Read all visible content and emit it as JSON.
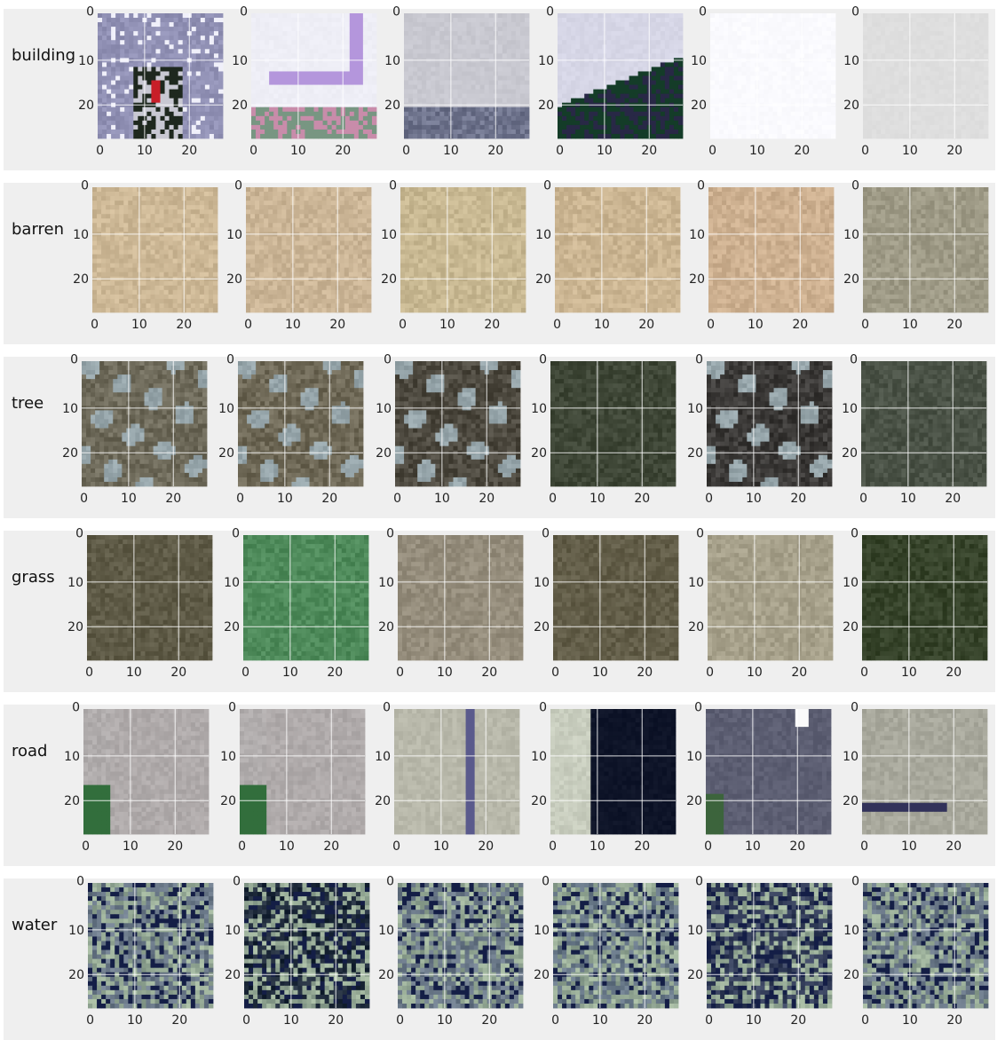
{
  "chart_data": {
    "type": "image-grid",
    "title": "",
    "image_size": [
      28,
      28
    ],
    "xticks": [
      0,
      10,
      20
    ],
    "yticks": [
      0,
      10,
      20
    ],
    "grid": true,
    "rows": [
      {
        "label": "building",
        "tiles": [
          {
            "base": "#9090b4",
            "pattern": "building-dark"
          },
          {
            "base": "#eeeef6",
            "pattern": "building-corner"
          },
          {
            "base": "#c8c8d0",
            "pattern": "building-bottom"
          },
          {
            "base": "#d6d6e6",
            "pattern": "building-trees"
          },
          {
            "base": "#fafafe",
            "pattern": "plain"
          },
          {
            "base": "#dedede",
            "pattern": "plain"
          }
        ]
      },
      {
        "label": "barren",
        "tiles": [
          {
            "base": "#cdb896",
            "pattern": "noise"
          },
          {
            "base": "#cbb596",
            "pattern": "noise"
          },
          {
            "base": "#c8b892",
            "pattern": "noise"
          },
          {
            "base": "#cbb592",
            "pattern": "noise"
          },
          {
            "base": "#cdb090",
            "pattern": "noise"
          },
          {
            "base": "#9e9a86",
            "pattern": "noise"
          }
        ]
      },
      {
        "label": "tree",
        "tiles": [
          {
            "base": "#6e6a5a",
            "pattern": "tree"
          },
          {
            "base": "#6e6856",
            "pattern": "tree"
          },
          {
            "base": "#4e4a40",
            "pattern": "tree"
          },
          {
            "base": "#3e4636",
            "pattern": "noise"
          },
          {
            "base": "#3c3a38",
            "pattern": "tree"
          },
          {
            "base": "#4a5246",
            "pattern": "noise"
          }
        ]
      },
      {
        "label": "grass",
        "tiles": [
          {
            "base": "#5e5a46",
            "pattern": "noise"
          },
          {
            "base": "#4e8a5a",
            "pattern": "noise"
          },
          {
            "base": "#958d7c",
            "pattern": "noise"
          },
          {
            "base": "#625d48",
            "pattern": "noise"
          },
          {
            "base": "#a6a08a",
            "pattern": "noise"
          },
          {
            "base": "#36432a",
            "pattern": "noise"
          }
        ]
      },
      {
        "label": "road",
        "tiles": [
          {
            "base": "#b0acac",
            "pattern": "road-a"
          },
          {
            "base": "#b0acac",
            "pattern": "road-a"
          },
          {
            "base": "#b8b8aa",
            "pattern": "road-line"
          },
          {
            "base": "#0e1428",
            "pattern": "road-dark"
          },
          {
            "base": "#5c5e72",
            "pattern": "road-gray"
          },
          {
            "base": "#a8a89c",
            "pattern": "road-diag"
          }
        ]
      },
      {
        "label": "water",
        "tiles": [
          {
            "base": "#6a7888",
            "pattern": "water"
          },
          {
            "base": "#1e2a3a",
            "pattern": "water"
          },
          {
            "base": "#6a7888",
            "pattern": "water"
          },
          {
            "base": "#667686",
            "pattern": "water"
          },
          {
            "base": "#343e5a",
            "pattern": "water"
          },
          {
            "base": "#6a7888",
            "pattern": "water"
          }
        ]
      }
    ]
  }
}
